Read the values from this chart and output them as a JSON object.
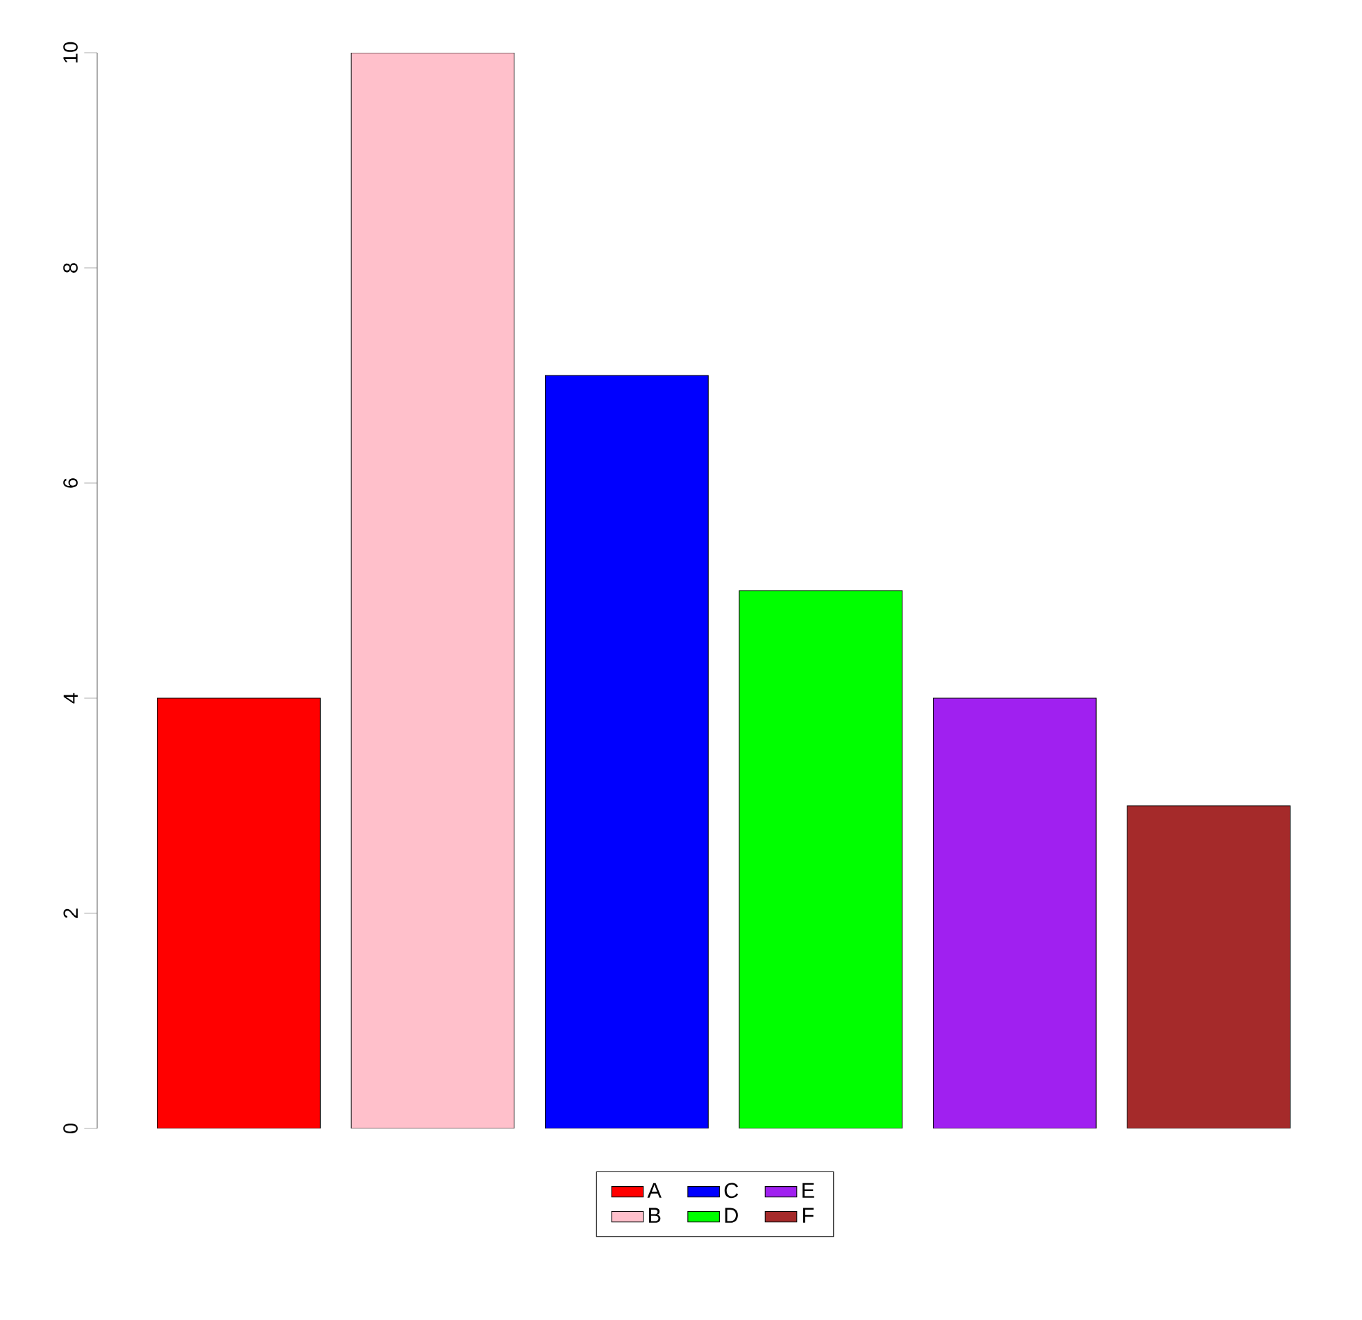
{
  "chart_data": {
    "type": "bar",
    "stacked": true,
    "categories": [
      null,
      null,
      null,
      null,
      null,
      null
    ],
    "series": [
      {
        "name": "A",
        "color": "#ff0000",
        "values": [
          4,
          null,
          null,
          null,
          null,
          null
        ]
      },
      {
        "name": "B",
        "color": "#ffc0cb",
        "values": [
          null,
          10,
          null,
          null,
          null,
          null
        ]
      },
      {
        "name": "C",
        "color": "#0000ff",
        "values": [
          null,
          null,
          7,
          null,
          null,
          null
        ]
      },
      {
        "name": "D",
        "color": "#00ff00",
        "values": [
          null,
          null,
          null,
          5,
          null,
          null
        ]
      },
      {
        "name": "E",
        "color": "#a020f0",
        "values": [
          null,
          null,
          null,
          null,
          4,
          null
        ]
      },
      {
        "name": "F",
        "color": "#a52a2a",
        "values": [
          null,
          null,
          null,
          null,
          null,
          3
        ]
      }
    ],
    "ylim": [
      0,
      10
    ],
    "yticks": [
      0,
      2,
      4,
      6,
      8,
      10
    ],
    "legend": "bottom",
    "tick_labels": "y"
  }
}
